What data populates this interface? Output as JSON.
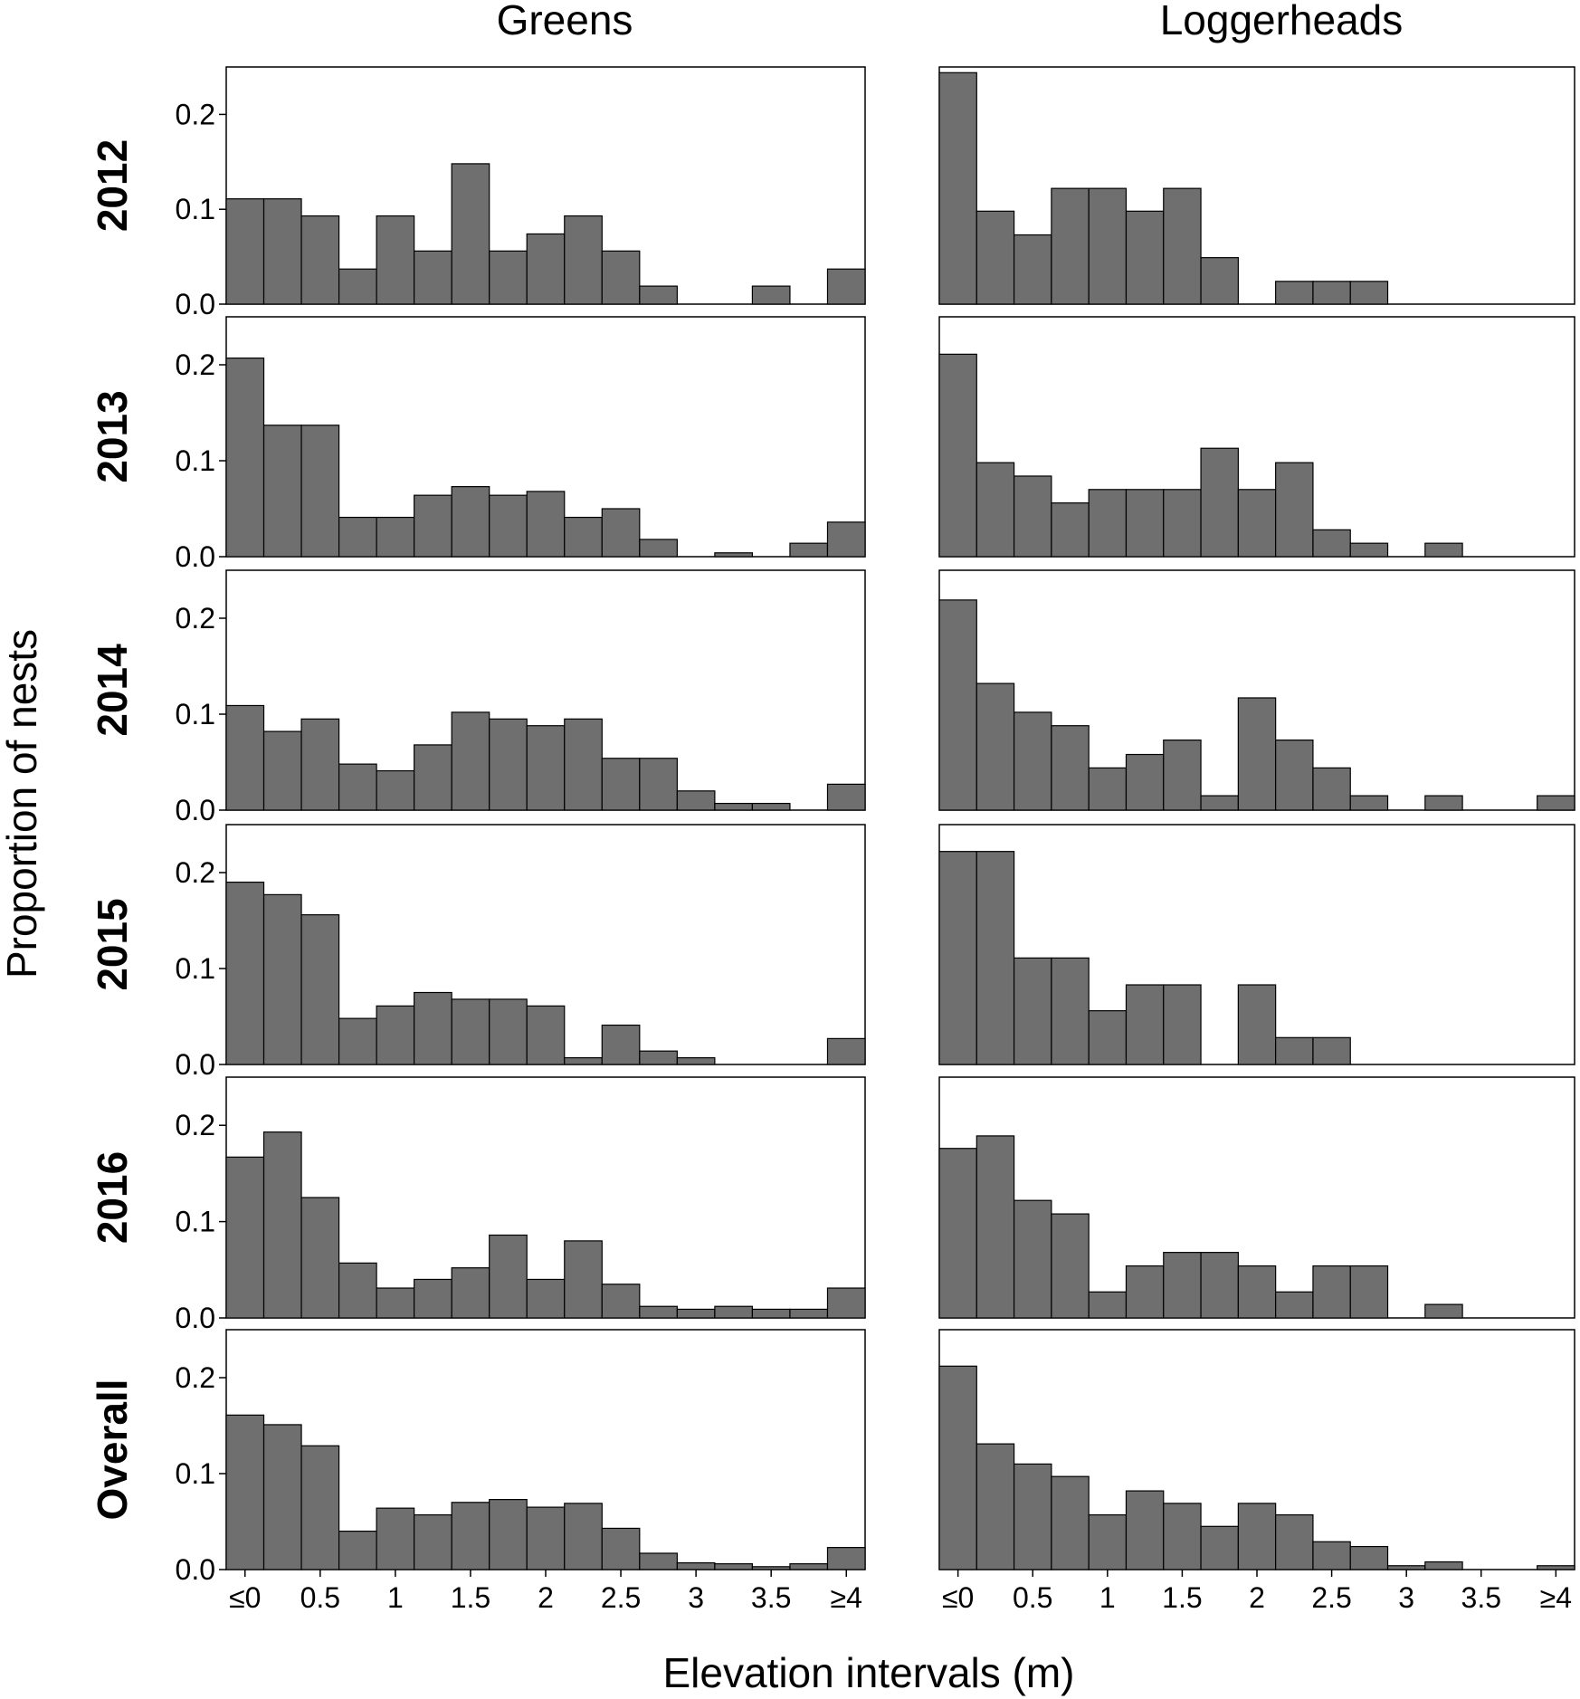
{
  "figure": {
    "col_titles": [
      "Greens",
      "Loggerheads"
    ],
    "row_labels": [
      "2012",
      "2013",
      "2014",
      "2015",
      "2016",
      "Overall"
    ],
    "ylabel": "Proportion of nests",
    "xlabel": "Elevation intervals (m)",
    "bar_color": "#6f6f6f",
    "bar_edge_color": "#000000"
  },
  "chart_data": [
    {
      "type": "bar",
      "panel": "Greens 2012",
      "ylim": [
        0,
        0.25
      ],
      "yticks": [
        "0.0",
        "0.1",
        "0.2"
      ],
      "values": [
        0.111,
        0.111,
        0.093,
        0.037,
        0.093,
        0.056,
        0.148,
        0.056,
        0.074,
        0.093,
        0.056,
        0.019,
        0,
        0,
        0.019,
        0,
        0.037
      ]
    },
    {
      "type": "bar",
      "panel": "Loggerheads 2012",
      "ylim": [
        0,
        0.25
      ],
      "yticks": [],
      "values": [
        0.244,
        0.098,
        0.073,
        0.122,
        0.122,
        0.098,
        0.122,
        0.049,
        0,
        0.024,
        0.024,
        0.024,
        0,
        0,
        0,
        0,
        0
      ]
    },
    {
      "type": "bar",
      "panel": "Greens 2013",
      "ylim": [
        0,
        0.25
      ],
      "yticks": [
        "0.0",
        "0.1",
        "0.2"
      ],
      "values": [
        0.207,
        0.137,
        0.137,
        0.041,
        0.041,
        0.064,
        0.073,
        0.064,
        0.068,
        0.041,
        0.05,
        0.018,
        0,
        0.004,
        0,
        0.014,
        0.036
      ]
    },
    {
      "type": "bar",
      "panel": "Loggerheads 2013",
      "ylim": [
        0,
        0.25
      ],
      "yticks": [],
      "values": [
        0.211,
        0.098,
        0.084,
        0.056,
        0.07,
        0.07,
        0.07,
        0.113,
        0.07,
        0.098,
        0.028,
        0.014,
        0,
        0.014,
        0,
        0,
        0
      ]
    },
    {
      "type": "bar",
      "panel": "Greens 2014",
      "ylim": [
        0,
        0.25
      ],
      "yticks": [
        "0.0",
        "0.1",
        "0.2"
      ],
      "values": [
        0.109,
        0.082,
        0.095,
        0.048,
        0.041,
        0.068,
        0.102,
        0.095,
        0.088,
        0.095,
        0.054,
        0.054,
        0.02,
        0.007,
        0.007,
        0,
        0.027
      ]
    },
    {
      "type": "bar",
      "panel": "Loggerheads 2014",
      "ylim": [
        0,
        0.25
      ],
      "yticks": [],
      "values": [
        0.219,
        0.132,
        0.102,
        0.088,
        0.044,
        0.058,
        0.073,
        0.015,
        0.117,
        0.073,
        0.044,
        0.015,
        0,
        0.015,
        0,
        0,
        0.015
      ]
    },
    {
      "type": "bar",
      "panel": "Greens 2015",
      "ylim": [
        0,
        0.25
      ],
      "yticks": [
        "0.0",
        "0.1",
        "0.2"
      ],
      "values": [
        0.19,
        0.177,
        0.156,
        0.048,
        0.061,
        0.075,
        0.068,
        0.068,
        0.061,
        0.007,
        0.041,
        0.014,
        0.007,
        0,
        0,
        0,
        0.027
      ]
    },
    {
      "type": "bar",
      "panel": "Loggerheads 2015",
      "ylim": [
        0,
        0.25
      ],
      "yticks": [],
      "values": [
        0.222,
        0.222,
        0.111,
        0.111,
        0.056,
        0.083,
        0.083,
        0,
        0.083,
        0.028,
        0.028,
        0,
        0,
        0,
        0,
        0,
        0
      ]
    },
    {
      "type": "bar",
      "panel": "Greens 2016",
      "ylim": [
        0,
        0.25
      ],
      "yticks": [
        "0.0",
        "0.1",
        "0.2"
      ],
      "values": [
        0.167,
        0.193,
        0.125,
        0.057,
        0.031,
        0.04,
        0.052,
        0.086,
        0.04,
        0.08,
        0.035,
        0.012,
        0.009,
        0.012,
        0.009,
        0.009,
        0.031
      ]
    },
    {
      "type": "bar",
      "panel": "Loggerheads 2016",
      "ylim": [
        0,
        0.25
      ],
      "yticks": [],
      "values": [
        0.176,
        0.189,
        0.122,
        0.108,
        0.027,
        0.054,
        0.068,
        0.068,
        0.054,
        0.027,
        0.054,
        0.054,
        0,
        0.014,
        0,
        0,
        0
      ]
    },
    {
      "type": "bar",
      "panel": "Greens Overall",
      "ylim": [
        0,
        0.25
      ],
      "yticks": [
        "0.0",
        "0.1",
        "0.2"
      ],
      "values": [
        0.161,
        0.151,
        0.129,
        0.04,
        0.064,
        0.057,
        0.07,
        0.073,
        0.065,
        0.069,
        0.043,
        0.017,
        0.007,
        0.006,
        0.003,
        0.006,
        0.023
      ],
      "xtick_labels": [
        "≤0",
        "0.5",
        "1",
        "1.5",
        "2",
        "2.5",
        "3",
        "3.5",
        "≥4"
      ]
    },
    {
      "type": "bar",
      "panel": "Loggerheads Overall",
      "ylim": [
        0,
        0.25
      ],
      "yticks": [],
      "values": [
        0.212,
        0.131,
        0.11,
        0.097,
        0.057,
        0.082,
        0.069,
        0.045,
        0.069,
        0.057,
        0.029,
        0.024,
        0.004,
        0.008,
        0,
        0,
        0.004
      ],
      "xtick_labels": [
        "≤0",
        "0.5",
        "1",
        "1.5",
        "2",
        "2.5",
        "3",
        "3.5",
        "≥4"
      ]
    }
  ]
}
